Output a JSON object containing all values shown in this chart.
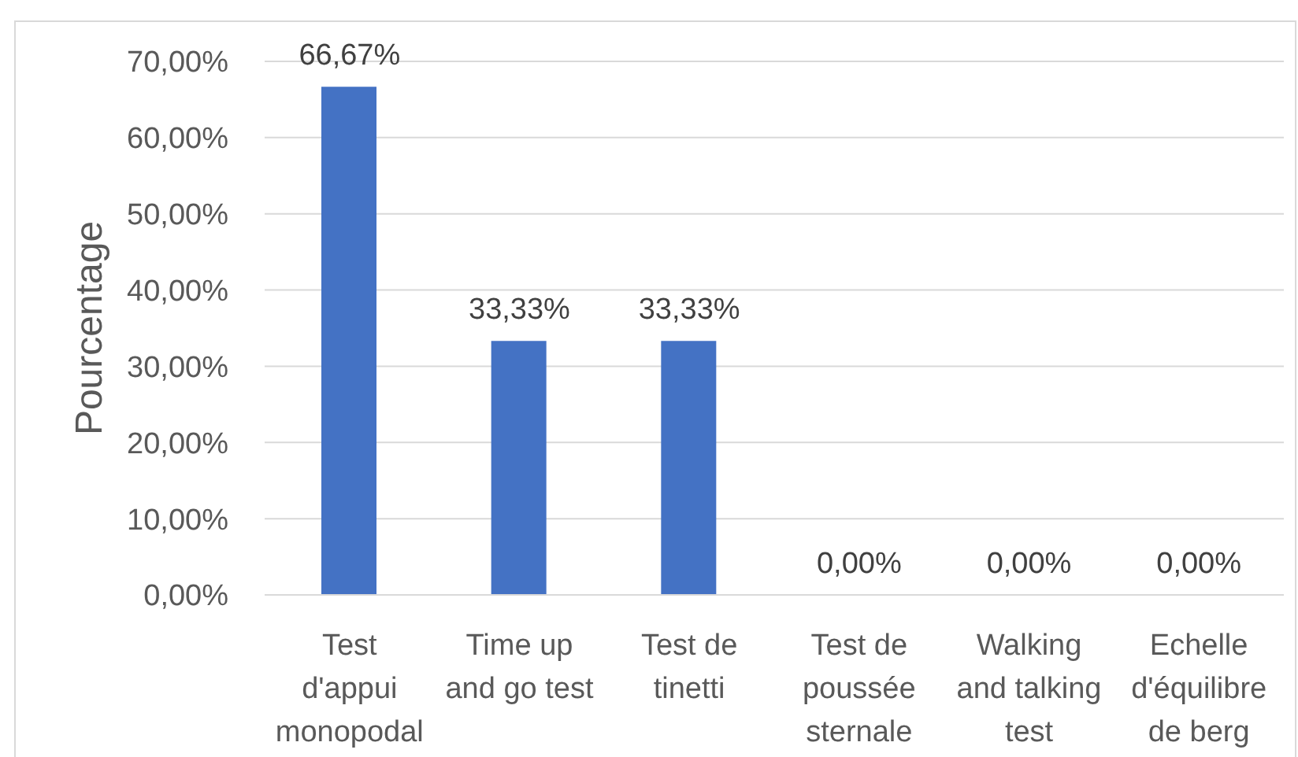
{
  "chart_data": {
    "type": "bar",
    "categories": [
      "Test d'appui monopodal",
      "Time up and go test",
      "Test de tinetti",
      "Test de poussée sternale",
      "Walking and talking test",
      "Echelle d'équilibre de berg"
    ],
    "values": [
      66.67,
      33.33,
      33.33,
      0,
      0,
      0
    ],
    "color": "#4472c4",
    "ylabel": "Pourcentage",
    "ylim": [
      0,
      70
    ],
    "yticks": [
      {
        "value": 0,
        "label": "0,00%"
      },
      {
        "value": 10,
        "label": "10,00%"
      },
      {
        "value": 20,
        "label": "20,00%"
      },
      {
        "value": 30,
        "label": "30,00%"
      },
      {
        "value": 40,
        "label": "40,00%"
      },
      {
        "value": 50,
        "label": "50,00%"
      },
      {
        "value": 60,
        "label": "60,00%"
      },
      {
        "value": 70,
        "label": "70,00%"
      }
    ],
    "grid": "y",
    "value_labels": [
      "66,67%",
      "33,33%",
      "33,33%",
      "0,00%",
      "0,00%",
      "0,00%"
    ]
  }
}
